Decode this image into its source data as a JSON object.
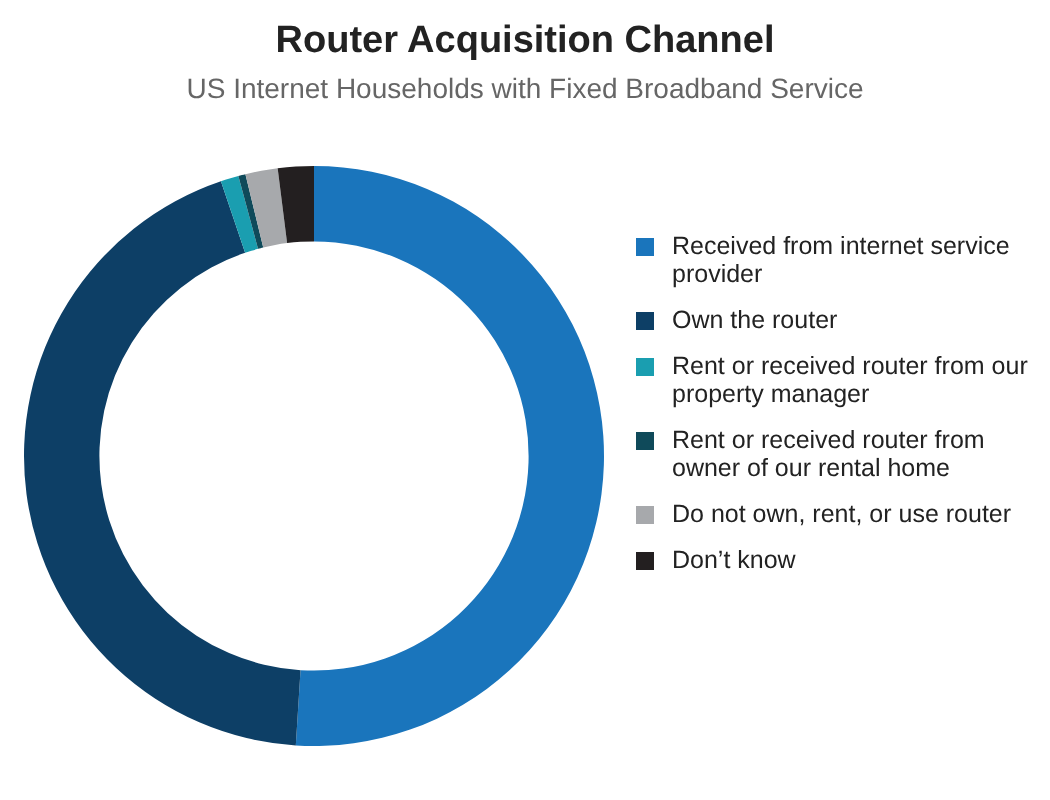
{
  "chart_data": {
    "type": "donut",
    "title": "Router Acquisition Channel",
    "subtitle": "US Internet Households with Fixed Broadband Service",
    "categories": [
      "Received from internet service provider",
      "Own the router",
      "Rent or received router from our property manager",
      "Rent or received router from owner of our rental home",
      "Do not own, rent, or use router",
      "Don’t know"
    ],
    "values": [
      51,
      43.8,
      1,
      0.4,
      1.8,
      2
    ],
    "colors": [
      "#1a75bc",
      "#0d3f66",
      "#1a9eb0",
      "#0f4a5a",
      "#a7a9ac",
      "#231f20"
    ],
    "legend": "right"
  }
}
